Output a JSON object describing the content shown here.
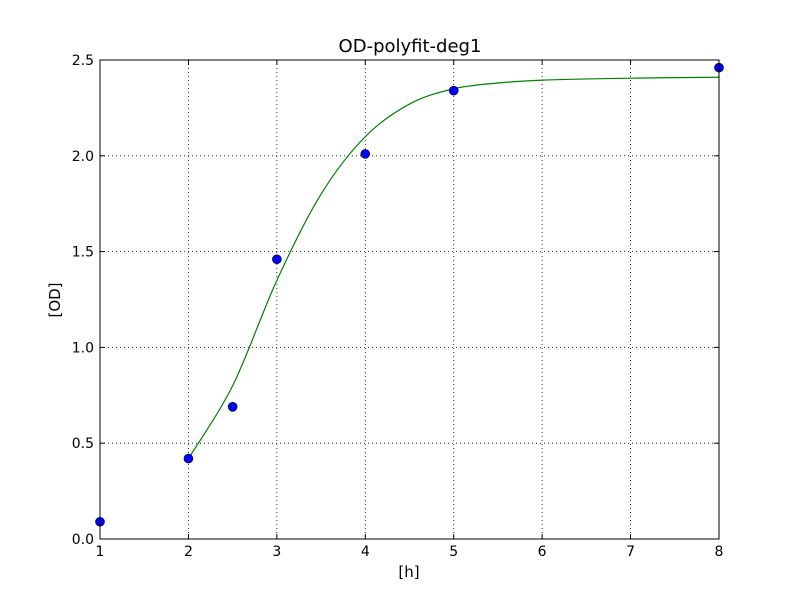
{
  "chart_data": {
    "type": "scatter",
    "title": "OD-polyfit-deg1",
    "xlabel": "[h]",
    "ylabel": "[OD]",
    "xlim": [
      1,
      8
    ],
    "ylim": [
      0.0,
      2.5
    ],
    "grid": true,
    "x_ticks": [
      1,
      2,
      3,
      4,
      5,
      6,
      7,
      8
    ],
    "x_tick_labels": [
      "1",
      "2",
      "3",
      "4",
      "5",
      "6",
      "7",
      "8"
    ],
    "y_ticks": [
      0.0,
      0.5,
      1.0,
      1.5,
      2.0,
      2.5
    ],
    "y_tick_labels": [
      "0.0",
      "0.5",
      "1.0",
      "1.5",
      "2.0",
      "2.5"
    ],
    "series": [
      {
        "type": "scatter",
        "color": "#0000ff",
        "x": [
          1,
          2,
          2.5,
          3,
          4,
          5,
          8
        ],
        "y": [
          0.09,
          0.42,
          0.69,
          1.46,
          2.01,
          2.34,
          2.46
        ]
      },
      {
        "type": "line",
        "color": "#008000",
        "x": [
          2,
          2.5,
          3,
          3.5,
          4,
          4.5,
          5,
          5.5,
          6,
          7,
          8
        ],
        "y": [
          0.42,
          0.8,
          1.35,
          1.8,
          2.1,
          2.27,
          2.35,
          2.38,
          2.395,
          2.405,
          2.41
        ]
      }
    ]
  }
}
